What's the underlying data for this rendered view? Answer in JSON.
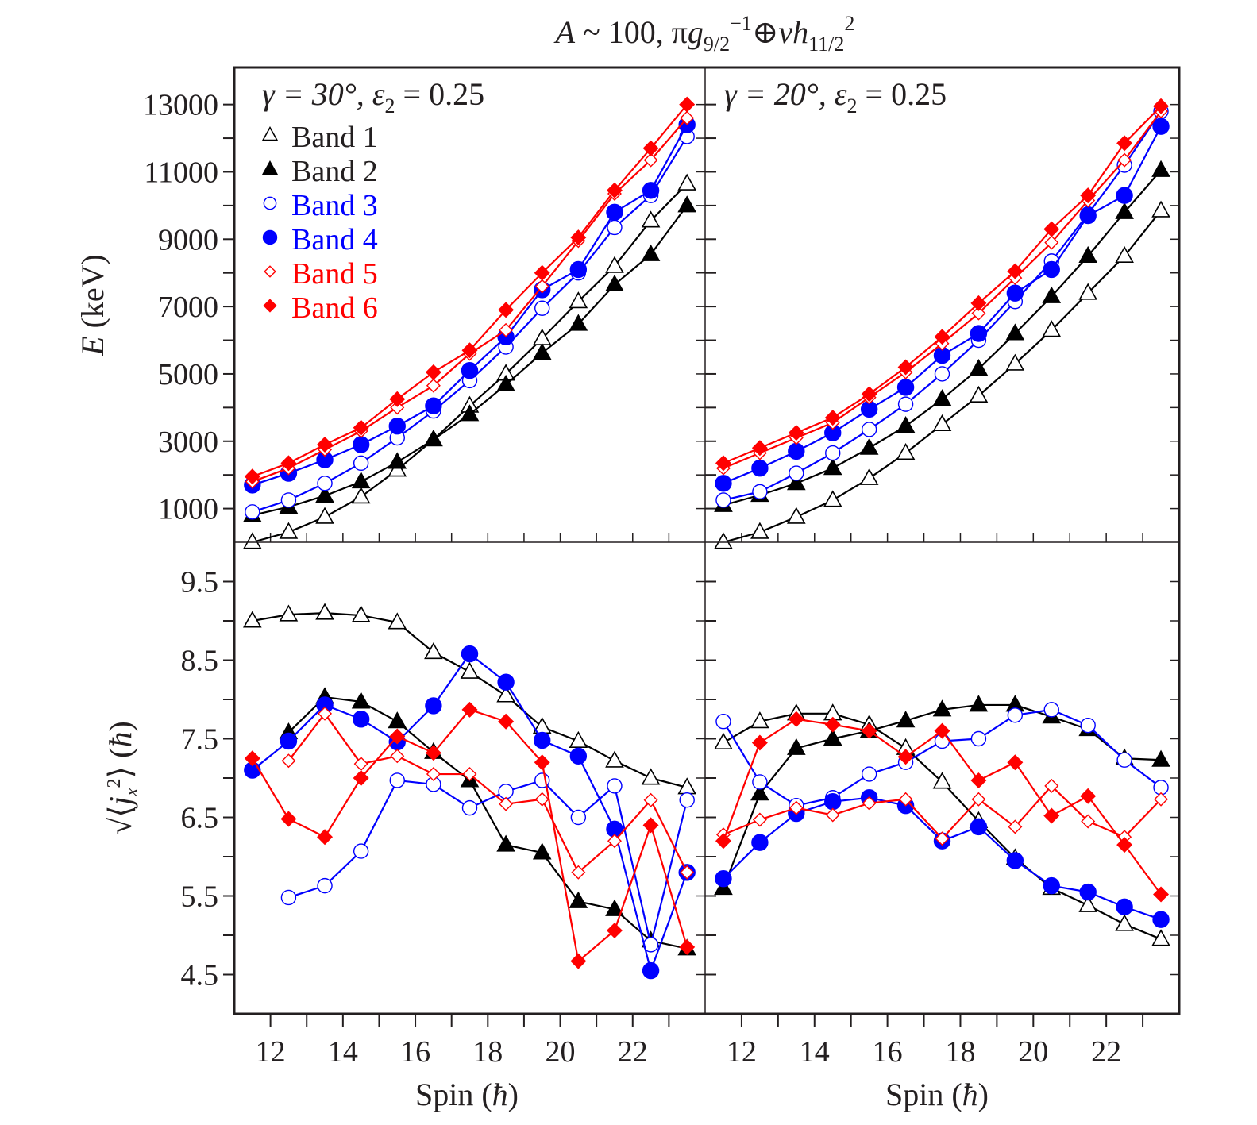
{
  "chart_data": {
    "type": "line",
    "title": "A ~ 100, πg9/2^-1 ⊕ νh11/2^2",
    "title_parts": {
      "A": "A",
      "approx": " ~ 100, π",
      "g": "g",
      "g_sub": "9/2",
      "g_sup": "−1",
      "oplus": "⊕",
      "nu": "ν",
      "h": "h",
      "h_sub": "11/2",
      "h_sup": "2"
    },
    "x": [
      11.5,
      12.5,
      13.5,
      14.5,
      15.5,
      16.5,
      17.5,
      18.5,
      19.5,
      20.5,
      21.5,
      22.5,
      23.5
    ],
    "xlabel": "Spin (ħ)",
    "xlabel_parts": {
      "text": "Spin (",
      "hbar": "ħ",
      "close": ")"
    },
    "xlim": [
      11.0,
      24.0
    ],
    "xticks": [
      12,
      14,
      16,
      18,
      20,
      22
    ],
    "xminor": [
      12,
      13,
      14,
      15,
      16,
      17,
      18,
      19,
      20,
      21,
      22,
      23
    ],
    "legend": {
      "placement": "top-left",
      "entries": [
        {
          "label": "Band 1",
          "marker": "open-triangle",
          "color": "#000000"
        },
        {
          "label": "Band 2",
          "marker": "filled-triangle",
          "color": "#000000"
        },
        {
          "label": "Band 3",
          "marker": "open-circle",
          "color": "#0000ff"
        },
        {
          "label": "Band 4",
          "marker": "filled-circle",
          "color": "#0000ff"
        },
        {
          "label": "Band 5",
          "marker": "open-diamond",
          "color": "#ff0000"
        },
        {
          "label": "Band 6",
          "marker": "filled-diamond",
          "color": "#ff0000"
        }
      ]
    },
    "panels": [
      {
        "id": "energy-gamma30",
        "annotation": {
          "gamma": "γ = 30°, ",
          "eps": "ε",
          "eps_sub": "2",
          "rest": " = 0.25"
        },
        "ylabel": "E (keV)",
        "ylim": [
          0,
          14100
        ],
        "yticks": [
          1000,
          3000,
          5000,
          7000,
          9000,
          11000,
          13000
        ],
        "yminor": [
          2000,
          4000,
          6000,
          8000,
          10000,
          12000
        ],
        "series": [
          {
            "name": "Band 1",
            "values": [
              0,
              300,
              750,
              1350,
              2150,
              3050,
              4050,
              5000,
              6050,
              7150,
              8200,
              9550,
              10650
            ]
          },
          {
            "name": "Band 2",
            "values": [
              800,
              1050,
              1380,
              1800,
              2380,
              3050,
              3800,
              4680,
              5620,
              6480,
              7650,
              8550,
              10000
            ]
          },
          {
            "name": "Band 3",
            "values": [
              900,
              1250,
              1750,
              2350,
              3100,
              3900,
              4800,
              5800,
              6950,
              8000,
              9350,
              10300,
              12050
            ]
          },
          {
            "name": "Band 4",
            "values": [
              1700,
              2050,
              2450,
              2900,
              3450,
              4050,
              5100,
              6100,
              7500,
              8100,
              9800,
              10450,
              12400
            ]
          },
          {
            "name": "Band 5",
            "values": [
              1800,
              2200,
              2750,
              3300,
              4000,
              4650,
              5600,
              6300,
              7600,
              8950,
              10350,
              11350,
              12600
            ]
          },
          {
            "name": "Band 6",
            "values": [
              1950,
              2350,
              2900,
              3400,
              4250,
              5050,
              5700,
              6900,
              8000,
              9050,
              10450,
              11700,
              13000
            ]
          }
        ]
      },
      {
        "id": "energy-gamma20",
        "annotation": {
          "gamma": "γ = 20°, ",
          "eps": "ε",
          "eps_sub": "2",
          "rest": " = 0.25"
        },
        "ylabel": "",
        "ylim": [
          0,
          14100
        ],
        "yticks": [
          1000,
          3000,
          5000,
          7000,
          9000,
          11000,
          13000
        ],
        "yminor": [
          2000,
          4000,
          6000,
          8000,
          10000,
          12000
        ],
        "series": [
          {
            "name": "Band 1",
            "values": [
              0,
              300,
              750,
              1250,
              1900,
              2650,
              3500,
              4350,
              5300,
              6300,
              7400,
              8500,
              9850
            ]
          },
          {
            "name": "Band 2",
            "values": [
              1100,
              1400,
              1750,
              2200,
              2800,
              3450,
              4250,
              5150,
              6200,
              7300,
              8500,
              9800,
              11050
            ]
          },
          {
            "name": "Band 3",
            "values": [
              1250,
              1500,
              2050,
              2650,
              3350,
              4100,
              5000,
              6000,
              7150,
              8350,
              9750,
              11200,
              12800
            ]
          },
          {
            "name": "Band 4",
            "values": [
              1750,
              2200,
              2700,
              3250,
              3950,
              4600,
              5550,
              6200,
              7400,
              8100,
              9700,
              10300,
              12350
            ]
          },
          {
            "name": "Band 5",
            "values": [
              2200,
              2650,
              3100,
              3550,
              4300,
              5050,
              5900,
              6800,
              7850,
              8900,
              10150,
              11350,
              12800
            ]
          },
          {
            "name": "Band 6",
            "values": [
              2350,
              2800,
              3250,
              3700,
              4400,
              5200,
              6100,
              7100,
              8050,
              9300,
              10300,
              11850,
              12950
            ]
          }
        ]
      },
      {
        "id": "jx-gamma30",
        "annotation": null,
        "ylabel": "sqrt(<jx^2>) (ħ)",
        "ylim": [
          4.0,
          10.0
        ],
        "yticks": [
          4.5,
          5.5,
          6.5,
          7.5,
          8.5,
          9.5
        ],
        "yminor": [
          5.0,
          6.0,
          7.0,
          8.0,
          9.0
        ],
        "series": [
          {
            "name": "Band 1",
            "values": [
              9.0,
              9.08,
              9.1,
              9.07,
              8.98,
              8.6,
              8.35,
              8.05,
              7.65,
              7.47,
              7.22,
              7.0,
              6.88
            ]
          },
          {
            "name": "Band 2",
            "values": [
              null,
              7.58,
              8.03,
              7.97,
              7.72,
              7.33,
              6.97,
              6.15,
              6.05,
              5.43,
              5.33,
              4.93,
              4.83
            ]
          },
          {
            "name": "Band 3",
            "values": [
              null,
              5.48,
              5.63,
              6.07,
              6.97,
              6.92,
              6.62,
              6.83,
              6.97,
              6.5,
              6.9,
              4.88,
              6.72
            ]
          },
          {
            "name": "Band 4",
            "values": [
              7.1,
              7.47,
              7.93,
              7.75,
              7.46,
              7.92,
              8.58,
              8.22,
              7.48,
              7.28,
              6.35,
              4.55,
              5.8
            ]
          },
          {
            "name": "Band 5",
            "values": [
              null,
              7.22,
              7.82,
              7.18,
              7.28,
              7.05,
              7.05,
              6.67,
              6.73,
              5.8,
              6.2,
              6.72,
              5.8
            ]
          },
          {
            "name": "Band 6",
            "values": [
              7.25,
              6.48,
              6.25,
              7.0,
              7.53,
              7.32,
              7.87,
              7.72,
              7.2,
              4.67,
              5.06,
              6.4,
              4.85
            ]
          }
        ]
      },
      {
        "id": "jx-gamma20",
        "annotation": null,
        "ylabel": "",
        "ylim": [
          4.0,
          10.0
        ],
        "yticks": [
          4.5,
          5.5,
          6.5,
          7.5,
          8.5,
          9.5
        ],
        "yminor": [
          5.0,
          6.0,
          7.0,
          8.0,
          9.0
        ],
        "series": [
          {
            "name": "Band 1",
            "values": [
              7.45,
              7.72,
              7.82,
              7.82,
              7.68,
              7.38,
              6.95,
              6.45,
              5.98,
              5.6,
              5.38,
              5.14,
              4.95
            ]
          },
          {
            "name": "Band 2",
            "values": [
              5.6,
              6.8,
              7.38,
              7.5,
              7.6,
              7.73,
              7.87,
              7.93,
              7.93,
              7.78,
              7.62,
              7.25,
              7.23
            ]
          },
          {
            "name": "Band 3",
            "values": [
              7.72,
              6.95,
              6.65,
              6.75,
              7.05,
              7.2,
              7.47,
              7.5,
              7.8,
              7.87,
              7.67,
              7.23,
              6.88
            ]
          },
          {
            "name": "Band 4",
            "values": [
              5.72,
              6.18,
              6.55,
              6.7,
              6.75,
              6.65,
              6.2,
              6.38,
              5.95,
              5.63,
              5.55,
              5.36,
              5.2
            ]
          },
          {
            "name": "Band 5",
            "values": [
              6.28,
              6.47,
              6.62,
              6.53,
              6.68,
              6.73,
              6.23,
              6.73,
              6.38,
              6.9,
              6.45,
              6.25,
              6.73
            ]
          },
          {
            "name": "Band 6",
            "values": [
              6.2,
              7.45,
              7.75,
              7.68,
              7.6,
              7.27,
              7.6,
              6.97,
              7.2,
              6.52,
              6.77,
              6.15,
              5.52
            ]
          }
        ]
      }
    ],
    "ylabel_top_parts": {
      "E": "E",
      "unit": " (keV)"
    },
    "ylabel_bottom_parts": {
      "sqrt": "√",
      "open": "⟨",
      "j": "j",
      "sub": "x",
      "sup": "2",
      "close": "⟩",
      "unit_open": " (",
      "hbar": "ħ",
      "unit_close": ")"
    },
    "grid": false,
    "colors": {
      "black": "#000000",
      "blue": "#0000ff",
      "red": "#ff0000",
      "axis": "#231f20"
    }
  }
}
